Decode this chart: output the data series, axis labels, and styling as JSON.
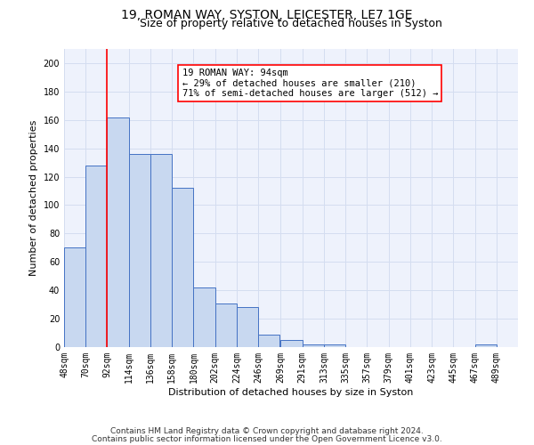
{
  "title1": "19, ROMAN WAY, SYSTON, LEICESTER, LE7 1GE",
  "title2": "Size of property relative to detached houses in Syston",
  "xlabel": "Distribution of detached houses by size in Syston",
  "ylabel": "Number of detached properties",
  "bar_left_edges": [
    48,
    70,
    92,
    114,
    136,
    158,
    180,
    202,
    224,
    246,
    269,
    291,
    313,
    335,
    357,
    379,
    401,
    423,
    445,
    467
  ],
  "bar_widths": [
    22,
    22,
    22,
    22,
    22,
    22,
    22,
    22,
    22,
    22,
    22,
    22,
    22,
    22,
    22,
    22,
    22,
    22,
    22,
    22
  ],
  "bar_heights": [
    70,
    128,
    162,
    136,
    136,
    112,
    42,
    31,
    28,
    9,
    5,
    2,
    2,
    0,
    0,
    0,
    0,
    0,
    0,
    2
  ],
  "bar_color": "#c8d8f0",
  "bar_edge_color": "#4472c4",
  "grid_color": "#d4ddf0",
  "bg_color": "#eef2fc",
  "red_line_x": 92,
  "annotation_text": "19 ROMAN WAY: 94sqm\n← 29% of detached houses are smaller (210)\n71% of semi-detached houses are larger (512) →",
  "annotation_box_color": "white",
  "annotation_box_edge": "red",
  "ylim": [
    0,
    210
  ],
  "yticks": [
    0,
    20,
    40,
    60,
    80,
    100,
    120,
    140,
    160,
    180,
    200
  ],
  "xtick_labels": [
    "48sqm",
    "70sqm",
    "92sqm",
    "114sqm",
    "136sqm",
    "158sqm",
    "180sqm",
    "202sqm",
    "224sqm",
    "246sqm",
    "269sqm",
    "291sqm",
    "313sqm",
    "335sqm",
    "357sqm",
    "379sqm",
    "401sqm",
    "423sqm",
    "445sqm",
    "467sqm",
    "489sqm"
  ],
  "footnote1": "Contains HM Land Registry data © Crown copyright and database right 2024.",
  "footnote2": "Contains public sector information licensed under the Open Government Licence v3.0.",
  "title1_fontsize": 10,
  "title2_fontsize": 9,
  "axis_label_fontsize": 8,
  "tick_fontsize": 7,
  "annotation_fontsize": 7.5,
  "footnote_fontsize": 6.5
}
